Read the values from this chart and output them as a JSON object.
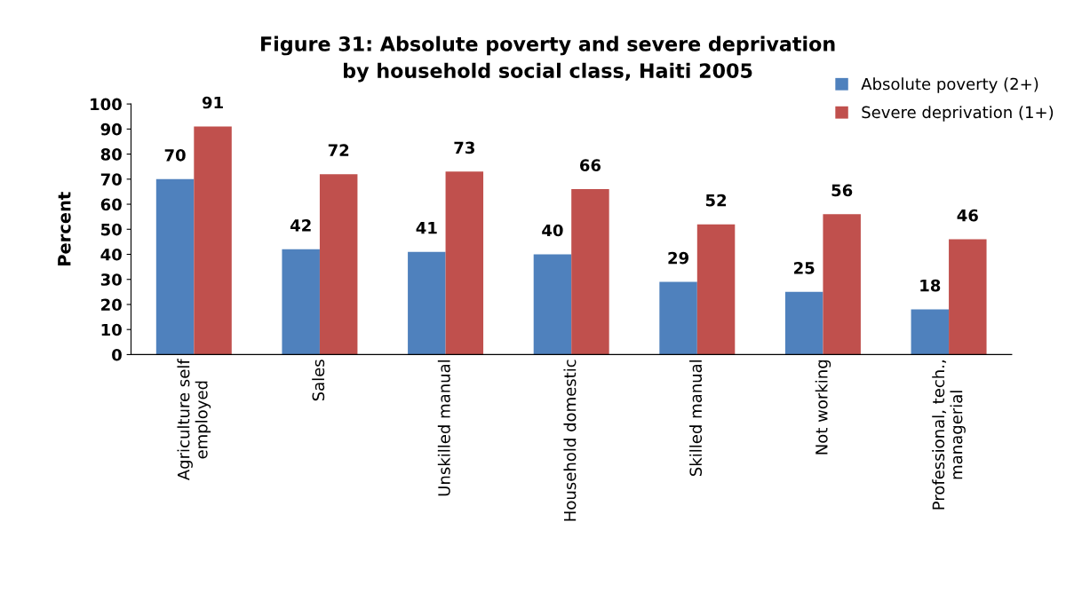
{
  "chart_data": {
    "type": "bar",
    "title": "Figure 31: Absolute poverty and severe deprivation\nby household social class, Haiti 2005",
    "ylabel": "Percent",
    "categories": [
      "Agriculture self\nemployed",
      "Sales",
      "Unskilled manual",
      "Household domestic",
      "Skilled manual",
      "Not working",
      "Professional, tech.,\nmanagerial"
    ],
    "series": [
      {
        "name": "Absolute poverty (2+)",
        "color": "#4f81bd",
        "values": [
          70,
          42,
          41,
          40,
          29,
          25,
          18
        ]
      },
      {
        "name": "Severe deprivation (1+)",
        "color": "#c0504d",
        "values": [
          91,
          72,
          73,
          66,
          52,
          56,
          46
        ]
      }
    ],
    "ylim": [
      0,
      100
    ],
    "yticks": [
      0,
      10,
      20,
      30,
      40,
      50,
      60,
      70,
      80,
      90,
      100
    ],
    "grid": false,
    "data_labels": true,
    "legend": "top right"
  }
}
